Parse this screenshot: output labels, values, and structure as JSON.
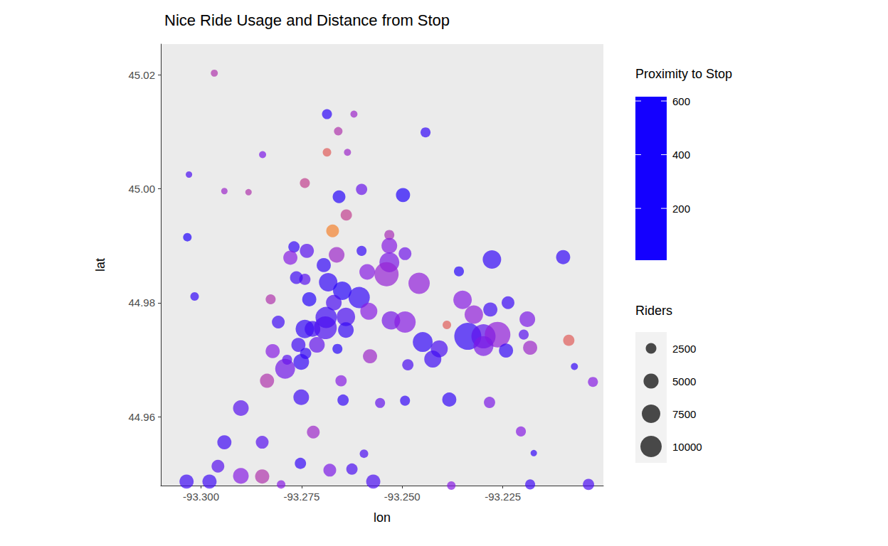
{
  "chart_data": {
    "type": "scatter",
    "title": "Nice Ride Usage and Distance from Stop",
    "x_label": "lon",
    "y_label": "lat",
    "xlim": [
      -93.31,
      -93.2
    ],
    "ylim": [
      44.9479,
      45.0254
    ],
    "xticks": [
      {
        "value": -93.3,
        "label": "-93.300"
      },
      -93.275,
      {
        "value": -93.25,
        "label": "-93.250"
      },
      -93.225
    ],
    "yticks": [
      44.96,
      44.98,
      {
        "value": 45.0,
        "label": "45.00"
      },
      45.02
    ],
    "grid": false,
    "x": [
      -93.2967,
      -93.2687,
      -93.262,
      -93.2659,
      -93.2442,
      -93.2687,
      -93.2636,
      -93.2847,
      -93.303,
      -93.2742,
      -93.2942,
      -93.2882,
      -93.2601,
      -93.2657,
      -93.2498,
      -93.2639,
      -93.2673,
      -93.3034,
      -93.2532,
      -93.2769,
      -93.2737,
      -93.2663,
      -93.2532,
      -93.2601,
      -93.2277,
      -93.21,
      -93.2778,
      -93.2695,
      -93.2532,
      -93.2493,
      -93.2587,
      -93.2458,
      -93.2539,
      -93.2359,
      -93.2742,
      -93.2684,
      -93.2763,
      -93.3016,
      -93.2827,
      -93.2731,
      -93.2649,
      -93.2607,
      -93.267,
      -93.2689,
      -93.264,
      -93.2583,
      -93.2528,
      -93.2493,
      -93.235,
      -93.2322,
      -93.2281,
      -93.2237,
      -93.2189,
      -93.2808,
      -93.2742,
      -93.2723,
      -93.2691,
      -93.264,
      -93.2389,
      -93.2337,
      -93.2298,
      -93.2263,
      -93.2298,
      -93.2242,
      -93.2198,
      -93.2182,
      -93.2086,
      -93.2449,
      -93.2408,
      -93.2424,
      -93.2822,
      -93.2758,
      -93.2712,
      -93.2786,
      -93.274,
      -93.2661,
      -93.258,
      -93.2486,
      -93.2751,
      -93.2791,
      -93.2836,
      -93.2652,
      -93.2072,
      -93.2026,
      -93.2751,
      -93.2647,
      -93.2555,
      -93.2493,
      -93.2383,
      -93.2283,
      -93.2901,
      -93.2721,
      -93.2942,
      -93.2848,
      -93.2595,
      -93.2205,
      -93.2173,
      -93.2958,
      -93.2753,
      -93.268,
      -93.2625,
      -93.2901,
      -93.2848,
      -93.3036,
      -93.2979,
      -93.2572,
      -93.2037,
      -93.2182,
      -93.2378,
      -93.2801
    ],
    "values": [
      45.0203,
      45.0131,
      45.0131,
      45.0101,
      45.0099,
      45.0064,
      45.0064,
      45.006,
      45.0025,
      45.001,
      44.9996,
      44.9994,
      44.9999,
      44.9986,
      44.9989,
      44.9954,
      44.9926,
      44.9915,
      44.9919,
      44.9898,
      44.9891,
      44.9884,
      44.99,
      44.9891,
      44.9876,
      44.988,
      44.9879,
      44.9866,
      44.9871,
      44.9886,
      44.9854,
      44.9834,
      44.985,
      44.9855,
      44.9841,
      44.9836,
      44.9844,
      44.9811,
      44.9806,
      44.9806,
      44.9821,
      44.9809,
      44.98,
      44.9774,
      44.9775,
      44.9785,
      44.9769,
      44.9766,
      44.9805,
      44.9779,
      44.9788,
      44.98,
      44.9771,
      44.9766,
      44.9754,
      44.9754,
      44.9756,
      44.9752,
      44.9761,
      44.9741,
      44.9741,
      44.9744,
      44.9724,
      44.9716,
      44.9744,
      44.9721,
      44.9734,
      44.9731,
      44.9719,
      44.9701,
      44.9715,
      44.9726,
      44.9726,
      44.97,
      44.9711,
      44.9719,
      44.9706,
      44.9691,
      44.9696,
      44.9684,
      44.9663,
      44.9663,
      44.9688,
      44.9661,
      44.9634,
      44.9629,
      44.9624,
      44.9628,
      44.963,
      44.9625,
      44.9615,
      44.9573,
      44.9555,
      44.9555,
      44.9535,
      44.9574,
      44.9536,
      44.9513,
      44.9518,
      44.9506,
      44.9508,
      44.9496,
      44.9495,
      44.9486,
      44.9486,
      44.9486,
      44.9481,
      44.9481,
      44.9479,
      44.9481
    ],
    "riders": [
      1100,
      2200,
      1100,
      1600,
      2200,
      1600,
      1100,
      1100,
      900,
      2200,
      900,
      900,
      2800,
      3600,
      4400,
      2800,
      3600,
      1600,
      2200,
      2800,
      4400,
      5400,
      5400,
      2200,
      7500,
      4400,
      4400,
      4400,
      8700,
      3600,
      5400,
      10000,
      12800,
      2200,
      2800,
      7500,
      3600,
      1600,
      2200,
      4400,
      7500,
      10000,
      5400,
      10000,
      7500,
      6400,
      7500,
      10000,
      7500,
      7500,
      4400,
      3600,
      5400,
      3600,
      7500,
      5400,
      11400,
      5400,
      1600,
      16000,
      12800,
      14400,
      8700,
      4400,
      2200,
      4400,
      2800,
      8700,
      6400,
      6400,
      4400,
      4400,
      5400,
      2200,
      2800,
      2200,
      4400,
      2800,
      5400,
      8700,
      4400,
      2800,
      1100,
      2200,
      5400,
      2800,
      2200,
      2200,
      4400,
      2800,
      5400,
      3600,
      4400,
      3600,
      1600,
      2200,
      900,
      3600,
      2800,
      3600,
      2800,
      5400,
      4400,
      4400,
      4400,
      4400,
      2800,
      2200,
      1600,
      1600
    ],
    "proximity": [
      300,
      50,
      250,
      300,
      60,
      450,
      250,
      180,
      100,
      350,
      250,
      300,
      150,
      40,
      30,
      350,
      550,
      30,
      280,
      60,
      120,
      250,
      200,
      60,
      60,
      60,
      200,
      60,
      180,
      160,
      200,
      220,
      230,
      40,
      120,
      60,
      80,
      60,
      300,
      40,
      40,
      60,
      100,
      80,
      100,
      200,
      170,
      200,
      200,
      220,
      80,
      70,
      180,
      80,
      60,
      80,
      100,
      60,
      450,
      60,
      130,
      220,
      180,
      60,
      120,
      250,
      450,
      60,
      100,
      80,
      200,
      80,
      140,
      120,
      60,
      40,
      250,
      100,
      60,
      160,
      300,
      200,
      60,
      200,
      80,
      60,
      140,
      60,
      60,
      180,
      120,
      250,
      80,
      120,
      100,
      200,
      60,
      120,
      60,
      180,
      100,
      200,
      300,
      80,
      80,
      100,
      100,
      80,
      200,
      200
    ],
    "colorbar": {
      "title": "Proximity to Stop",
      "range": [
        7,
        616
      ],
      "ticks": [
        200,
        400,
        600
      ],
      "colors": [
        "#1400ff",
        "#8e1ee0",
        "#d94f6a",
        "#ff9a10"
      ]
    },
    "size_legend": {
      "title": "Riders",
      "values": [
        2500,
        5000,
        7500,
        10000
      ]
    }
  }
}
